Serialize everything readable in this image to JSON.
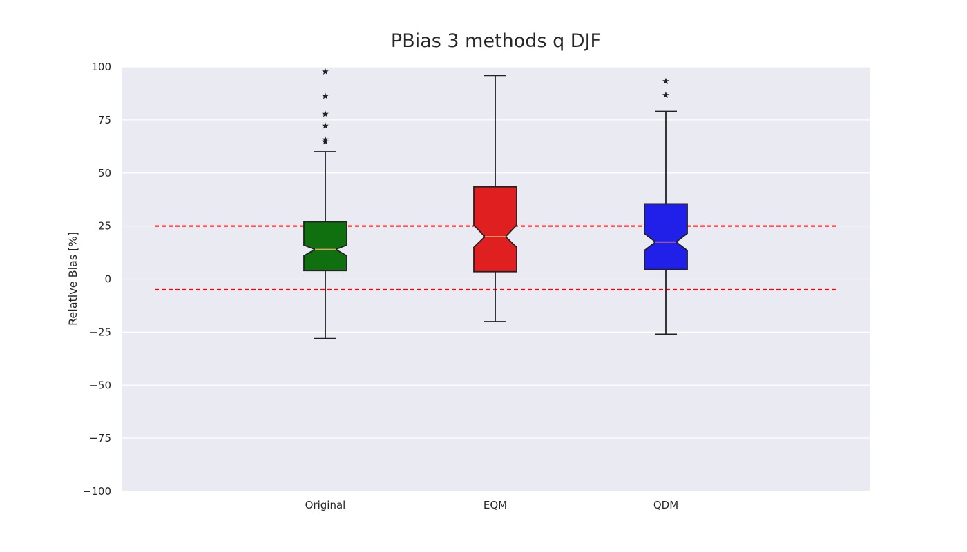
{
  "chart_data": {
    "type": "box",
    "title": "PBias 3 methods q DJF",
    "xlabel": "",
    "ylabel": "Relative Bias [%]",
    "ylim": [
      -100,
      100
    ],
    "yticks": [
      100,
      75,
      50,
      25,
      0,
      -25,
      -50,
      -75,
      -100
    ],
    "ytick_labels": [
      "100",
      "75",
      "50",
      "25",
      "0",
      "−25",
      "−50",
      "−75",
      "−100"
    ],
    "grid": true,
    "notched": true,
    "reference_lines": [
      {
        "y": 25,
        "color": "#ff0000",
        "style": "dashed"
      },
      {
        "y": -5,
        "color": "#ff0000",
        "style": "dashed"
      }
    ],
    "categories": [
      "Original",
      "EQM",
      "QDM"
    ],
    "series": [
      {
        "category": "Original",
        "color": "#107010",
        "median_color": "#e8a060",
        "whisker_low": -28,
        "q1": 4,
        "median": 14,
        "q3": 27,
        "whisker_high": 60,
        "notch_low": 11,
        "notch_high": 16,
        "outliers": [
          65,
          66,
          72.5,
          78,
          86.5,
          98
        ]
      },
      {
        "category": "EQM",
        "color": "#e02020",
        "median_color": "#f0b070",
        "whisker_low": -20,
        "q1": 3.5,
        "median": 20,
        "q3": 43.5,
        "whisker_high": 96,
        "notch_low": 15,
        "notch_high": 25.5,
        "outliers": []
      },
      {
        "category": "QDM",
        "color": "#2020e8",
        "median_color": "#e090c0",
        "whisker_low": -26,
        "q1": 4.5,
        "median": 17.5,
        "q3": 35.5,
        "whisker_high": 79,
        "notch_low": 13.5,
        "notch_high": 21.5,
        "outliers": [
          87,
          93.5
        ]
      }
    ]
  }
}
